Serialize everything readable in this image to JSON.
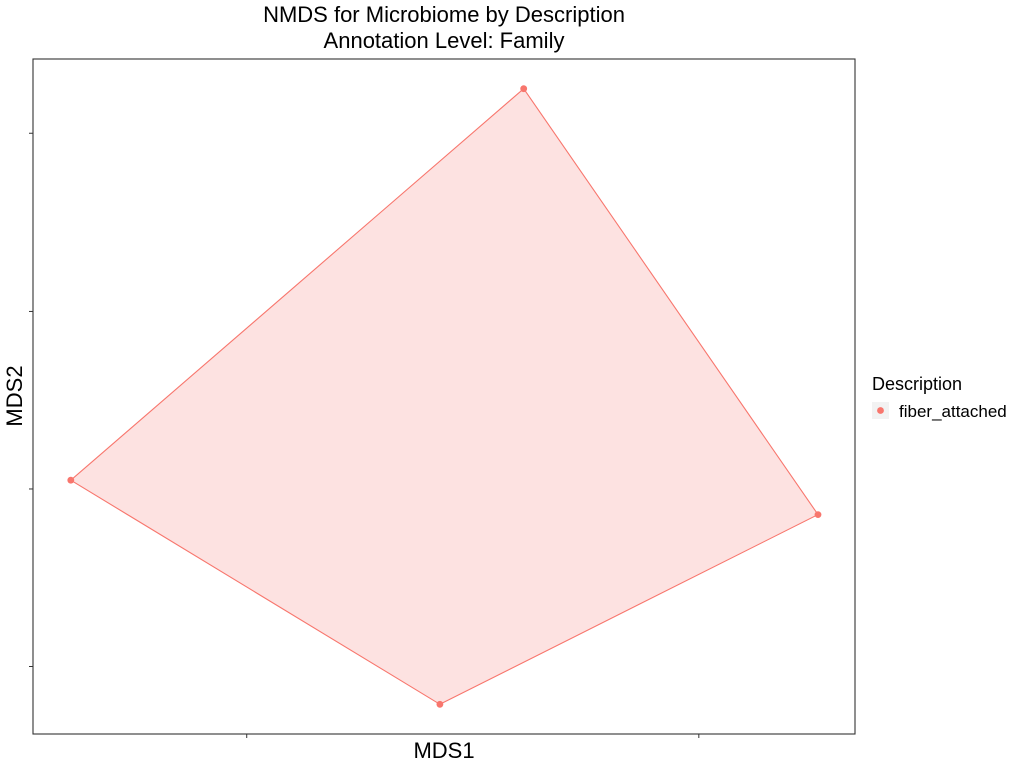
{
  "chart_data": {
    "type": "scatter",
    "title": "NMDS for Microbiome by Description",
    "subtitle": "Annotation Level: Family",
    "xlabel": "MDS1",
    "ylabel": "MDS2",
    "xlim": [
      0,
      100
    ],
    "ylim": [
      0,
      100
    ],
    "x_ticks": [
      26,
      81
    ],
    "y_ticks": [
      10,
      36.3,
      62.6,
      89
    ],
    "grid": false,
    "hull": true,
    "legend": {
      "title": "Description",
      "position": "right"
    },
    "series": [
      {
        "name": "fiber_attached",
        "color": "#F8766D",
        "hull_fill": "#FDE2E1",
        "points": [
          {
            "x": 59.7,
            "y": 95.6
          },
          {
            "x": 95.5,
            "y": 32.5
          },
          {
            "x": 49.5,
            "y": 4.4
          },
          {
            "x": 4.6,
            "y": 37.6
          }
        ]
      }
    ]
  }
}
